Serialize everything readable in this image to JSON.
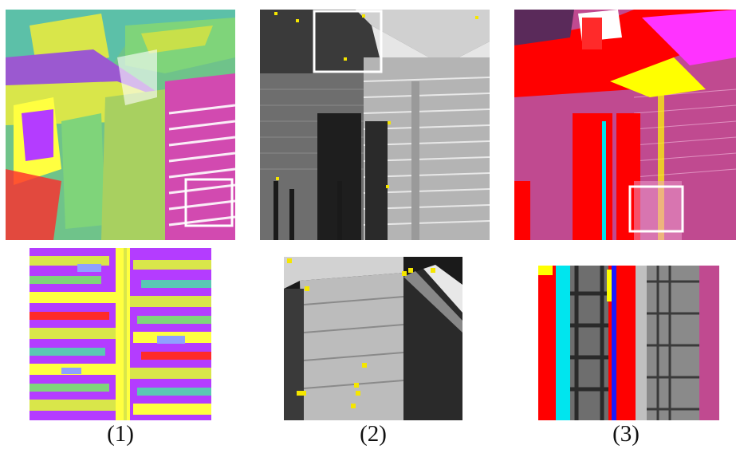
{
  "figure": {
    "captions": [
      "(1)",
      "(2)",
      "(3)"
    ],
    "panels": [
      {
        "name": "segmentation-label-map",
        "description_colors": [
          "#7fd47a",
          "#d9e64a",
          "#b43cff",
          "#ff2a2a",
          "#ffff40",
          "#5ac8b4",
          "#9b59d0"
        ]
      },
      {
        "name": "grayscale-with-keypoints",
        "marker_color": "#f5e600"
      },
      {
        "name": "classification-map",
        "description_colors": [
          "#ff0000",
          "#c04a90",
          "#ffff00",
          "#00e5ee",
          "#ff33ff",
          "#1a1aff"
        ]
      }
    ],
    "highlight_box_color": "#ffffff"
  }
}
